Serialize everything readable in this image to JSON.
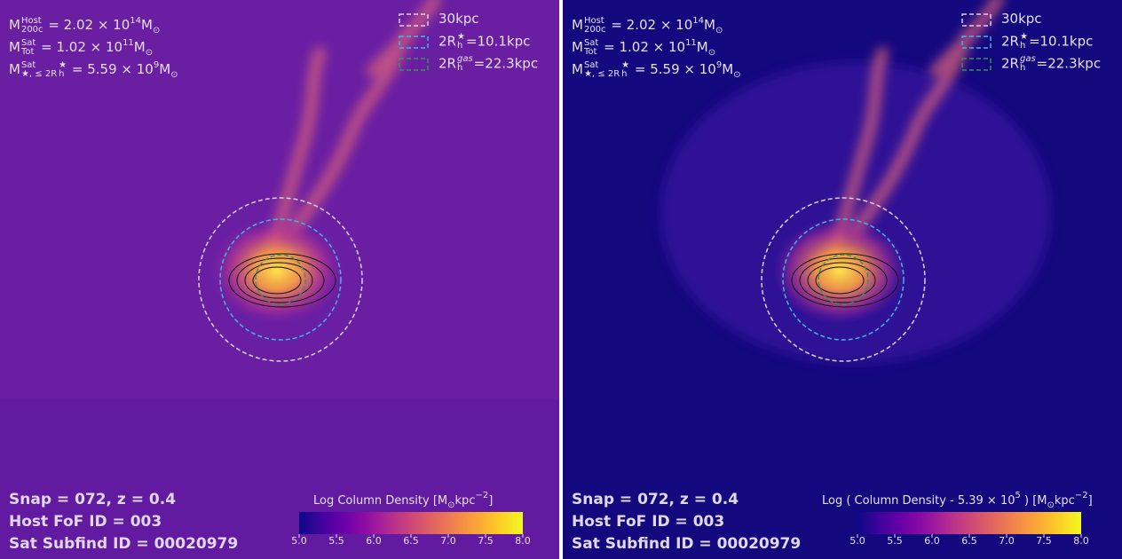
{
  "panels": [
    {
      "info": [
        [
          "M",
          {
            "sup": "Host",
            "sub": "200c"
          },
          " = 2.02 × 10",
          {
            "sup": "14"
          },
          "M",
          {
            "sub": "⊙"
          }
        ],
        [
          "M",
          {
            "sup": "Sat",
            "sub": "Tot"
          },
          " = 1.02 × 10",
          {
            "sup": "11"
          },
          "M",
          {
            "sub": "⊙"
          }
        ],
        [
          "M",
          {
            "sup": "Sat",
            "sub": "★, ≤ 2R"
          },
          {
            "sup": "★",
            "sub": "h"
          },
          " = 5.59 × 10",
          {
            "sup": "9"
          },
          "M",
          {
            "sub": "⊙"
          }
        ]
      ],
      "legend": [
        {
          "color": "#d9cfe6",
          "label": [
            "30kpc"
          ]
        },
        {
          "color": "#3fb6e6",
          "label": [
            "2R",
            {
              "sup": "★",
              "sub": "h"
            },
            "=10.1kpc"
          ]
        },
        {
          "color": "#3f8f5a",
          "label": [
            "2R",
            {
              "sup": "gas",
              "sub": "h"
            },
            "=22.3kpc"
          ]
        }
      ],
      "footer": [
        "Snap = 072, z = 0.4",
        "Host FoF ID = 003",
        "Sat Subfind ID = 00020979"
      ],
      "colorbar": {
        "label": [
          "Log Column Density [M",
          {
            "sub": "⊙"
          },
          "kpc",
          {
            "sup": "−2"
          },
          "]"
        ],
        "lim": [
          5,
          8
        ],
        "ticks": [
          {
            "value": 5,
            "label": "5.0"
          },
          {
            "value": 5.5,
            "label": "5.5"
          },
          {
            "value": 6,
            "label": "6.0"
          },
          {
            "value": 6.5,
            "label": "6.5"
          },
          {
            "value": 7,
            "label": "7.0"
          },
          {
            "value": 7.5,
            "label": "7.5"
          },
          {
            "value": 8,
            "label": "8.0"
          }
        ]
      },
      "background": "#6a1fa2"
    },
    {
      "info": [
        [
          "M",
          {
            "sup": "Host",
            "sub": "200c"
          },
          " = 2.02 × 10",
          {
            "sup": "14"
          },
          "M",
          {
            "sub": "⊙"
          }
        ],
        [
          "M",
          {
            "sup": "Sat",
            "sub": "Tot"
          },
          " = 1.02 × 10",
          {
            "sup": "11"
          },
          "M",
          {
            "sub": "⊙"
          }
        ],
        [
          "M",
          {
            "sup": "Sat",
            "sub": "★, ≤ 2R"
          },
          {
            "sup": "★",
            "sub": "h"
          },
          " = 5.59 × 10",
          {
            "sup": "9"
          },
          "M",
          {
            "sub": "⊙"
          }
        ]
      ],
      "legend": [
        {
          "color": "#d9cfe6",
          "label": [
            "30kpc"
          ]
        },
        {
          "color": "#3fb6e6",
          "label": [
            "2R",
            {
              "sup": "★",
              "sub": "h"
            },
            "=10.1kpc"
          ]
        },
        {
          "color": "#3f8f5a",
          "label": [
            "2R",
            {
              "sup": "gas",
              "sub": "h"
            },
            "=22.3kpc"
          ]
        }
      ],
      "footer": [
        "Snap = 072, z = 0.4",
        "Host FoF ID = 003",
        "Sat Subfind ID = 00020979"
      ],
      "colorbar": {
        "label": [
          "Log ( Column Density - 5.39 × 10",
          {
            "sup": "5"
          },
          " ) [M",
          {
            "sub": "⊙"
          },
          "kpc",
          {
            "sup": "−2"
          },
          "]"
        ],
        "lim": [
          5,
          8
        ],
        "ticks": [
          {
            "value": 5,
            "label": "5.0"
          },
          {
            "value": 5.5,
            "label": "5.5"
          },
          {
            "value": 6,
            "label": "6.0"
          },
          {
            "value": 6.5,
            "label": "6.5"
          },
          {
            "value": 7,
            "label": "7.0"
          },
          {
            "value": 7.5,
            "label": "7.5"
          },
          {
            "value": 8,
            "label": "8.0"
          }
        ]
      },
      "background": "#14087f"
    }
  ]
}
